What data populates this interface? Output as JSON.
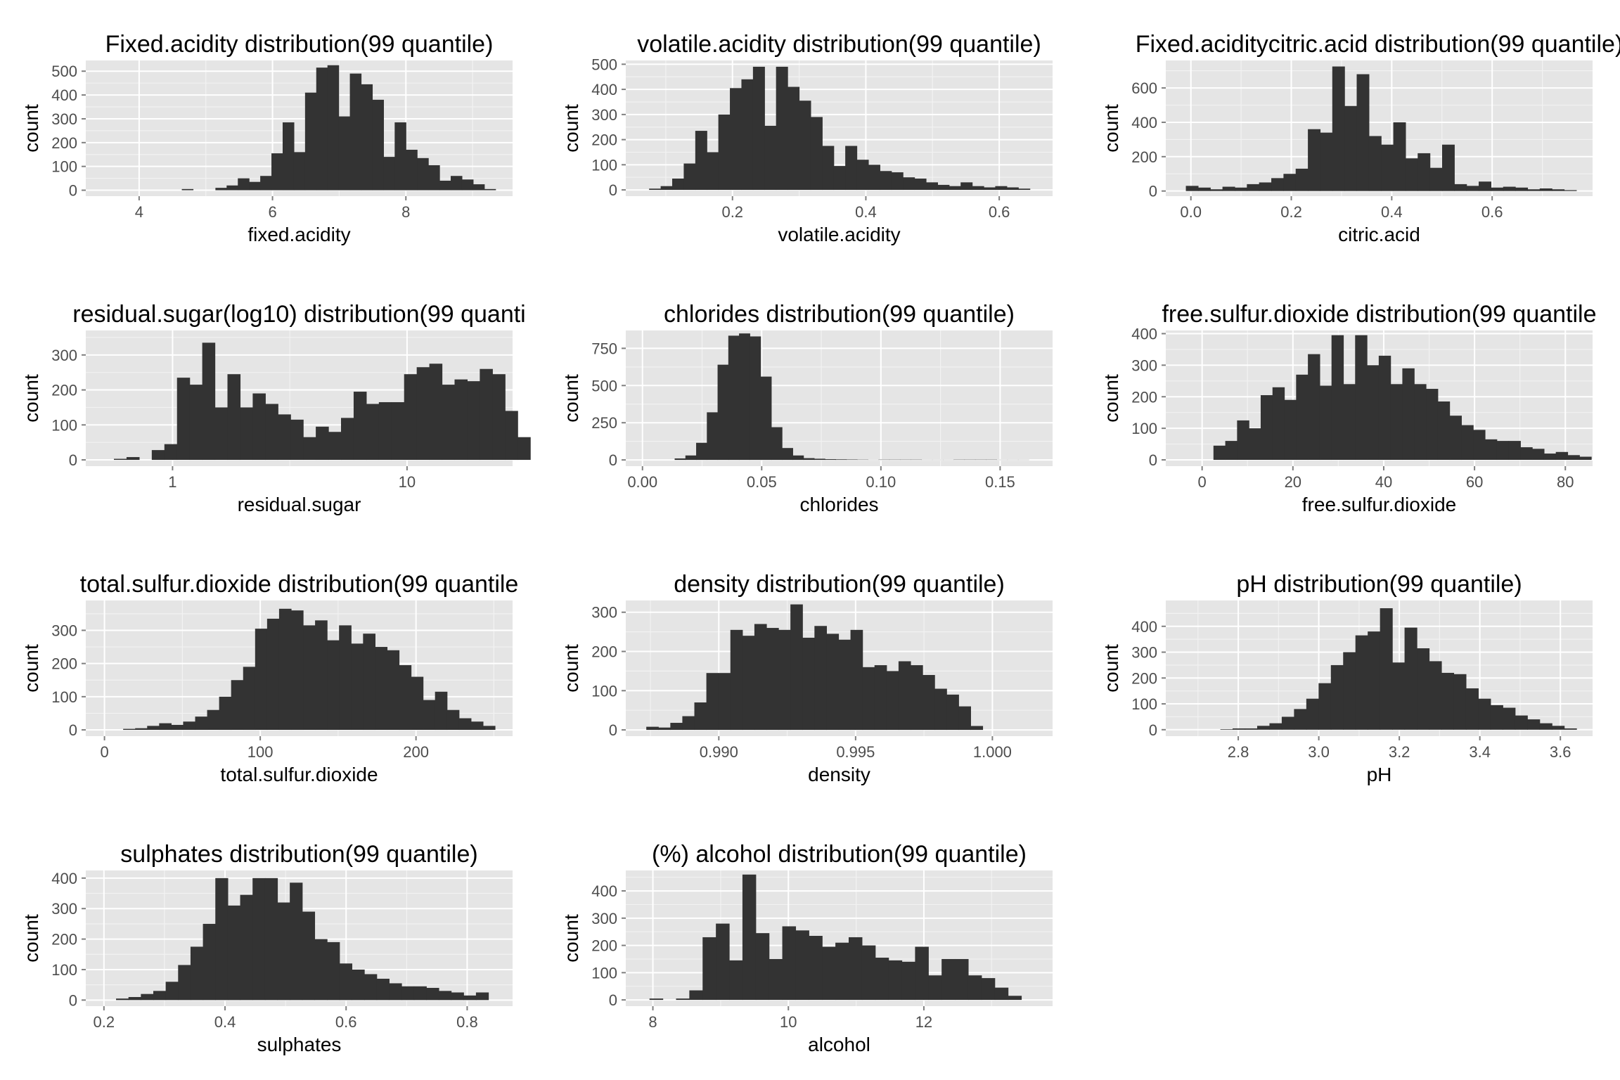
{
  "colors": {
    "panel_bg": "#e5e5e5",
    "grid_major": "#ffffff",
    "grid_minor": "#f2f2f2",
    "bar": "#333333",
    "tick_text": "#4d4d4d",
    "tick_mark": "#7f7f7f"
  },
  "chart_data": [
    {
      "type": "bar",
      "title": "Fixed.acidity distribution(99 quantile)",
      "xlabel": "fixed.acidity",
      "ylabel": "count",
      "xlim": [
        3.2,
        9.6
      ],
      "ylim": [
        -25,
        545
      ],
      "x_breaks": [
        4,
        6,
        8
      ],
      "x_tick_labels": [
        "4",
        "6",
        "8"
      ],
      "y_breaks": [
        0,
        100,
        200,
        300,
        400,
        500
      ],
      "y_tick_labels": [
        "0",
        "100",
        "200",
        "300",
        "400",
        "500"
      ],
      "bin_start": 3.8,
      "bin_width": 0.168,
      "values": [
        0,
        0,
        0,
        0,
        0,
        5,
        0,
        0,
        10,
        20,
        50,
        35,
        60,
        155,
        285,
        160,
        410,
        515,
        525,
        310,
        490,
        445,
        380,
        140,
        285,
        170,
        135,
        105,
        40,
        60,
        45,
        25,
        5,
        0,
        0
      ]
    },
    {
      "type": "bar",
      "title": "volatile.acidity distribution(99 quantile)",
      "xlabel": "volatile.acidity",
      "ylabel": "count",
      "xlim": [
        0.04,
        0.68
      ],
      "ylim": [
        -25,
        515
      ],
      "x_breaks": [
        0.2,
        0.4,
        0.6
      ],
      "x_tick_labels": [
        "0.2",
        "0.4",
        "0.6"
      ],
      "y_breaks": [
        0,
        100,
        200,
        300,
        400,
        500
      ],
      "y_tick_labels": [
        "0",
        "100",
        "200",
        "300",
        "400",
        "500"
      ],
      "bin_start": 0.075,
      "bin_width": 0.0173,
      "values": [
        5,
        15,
        45,
        105,
        235,
        150,
        300,
        405,
        440,
        490,
        255,
        490,
        410,
        355,
        290,
        175,
        95,
        175,
        120,
        100,
        75,
        70,
        50,
        45,
        30,
        20,
        15,
        30,
        15,
        10,
        15,
        10,
        5
      ]
    },
    {
      "type": "bar",
      "title": "Fixed.aciditycitric.acid distribution(99 quantile)",
      "xlabel": "citric.acid",
      "ylabel": "count",
      "xlim": [
        -0.05,
        0.8
      ],
      "ylim": [
        -30,
        760
      ],
      "x_breaks": [
        0,
        0.2,
        0.4,
        0.6
      ],
      "x_tick_labels": [
        "0.0",
        "0.2",
        "0.4",
        "0.6"
      ],
      "y_breaks": [
        0,
        200,
        400,
        600
      ],
      "y_tick_labels": [
        "0",
        "200",
        "400",
        "600"
      ],
      "bin_start": -0.01,
      "bin_width": 0.0243,
      "values": [
        30,
        20,
        10,
        25,
        20,
        40,
        50,
        75,
        100,
        130,
        360,
        340,
        725,
        495,
        680,
        320,
        270,
        400,
        190,
        220,
        135,
        270,
        40,
        30,
        55,
        20,
        25,
        20,
        10,
        15,
        10,
        5
      ]
    },
    {
      "type": "bar",
      "title": "residual.sugar(log10) distribution(99 quanti",
      "xlabel": "residual.sugar",
      "ylabel": "count",
      "x_scale": "log10",
      "xlim": [
        -0.37,
        1.45
      ],
      "ylim": [
        -18,
        370
      ],
      "x_breaks": [
        0,
        1
      ],
      "x_tick_labels": [
        "1",
        "10"
      ],
      "y_breaks": [
        0,
        100,
        200,
        300
      ],
      "y_tick_labels": [
        "0",
        "100",
        "200",
        "300"
      ],
      "bin_start": -0.25,
      "bin_width": 0.0538,
      "values": [
        3,
        8,
        0,
        28,
        45,
        235,
        215,
        335,
        150,
        245,
        150,
        190,
        160,
        130,
        115,
        65,
        95,
        80,
        120,
        195,
        160,
        165,
        165,
        245,
        265,
        275,
        215,
        230,
        225,
        260,
        245,
        140,
        65
      ]
    },
    {
      "type": "bar",
      "title": "chlorides distribution(99 quantile)",
      "xlabel": "chlorides",
      "ylabel": "count",
      "xlim": [
        -0.007,
        0.172
      ],
      "ylim": [
        -42,
        870
      ],
      "x_breaks": [
        0,
        0.05,
        0.1,
        0.15
      ],
      "x_tick_labels": [
        "0.00",
        "0.05",
        "0.10",
        "0.15"
      ],
      "y_breaks": [
        0,
        250,
        500,
        750
      ],
      "y_tick_labels": [
        "0",
        "250",
        "500",
        "750"
      ],
      "bin_start": 0.009,
      "bin_width": 0.0045,
      "values": [
        0,
        10,
        30,
        115,
        320,
        640,
        835,
        850,
        830,
        560,
        220,
        80,
        30,
        12,
        8,
        5,
        4,
        3,
        2,
        1,
        2,
        2,
        2,
        2,
        1,
        1,
        1,
        2,
        2,
        2,
        2,
        1,
        1,
        1
      ]
    },
    {
      "type": "bar",
      "title": "free.sulfur.dioxide distribution(99 quantile",
      "xlabel": "free.sulfur.dioxide",
      "ylabel": "count",
      "xlim": [
        -8,
        86
      ],
      "ylim": [
        -20,
        410
      ],
      "x_breaks": [
        0,
        20,
        40,
        60,
        80
      ],
      "x_tick_labels": [
        "0",
        "20",
        "40",
        "60",
        "80"
      ],
      "y_breaks": [
        0,
        100,
        200,
        300,
        400
      ],
      "y_tick_labels": [
        "0",
        "100",
        "200",
        "300",
        "400"
      ],
      "bin_start": 2.5,
      "bin_width": 2.6,
      "values": [
        45,
        60,
        125,
        100,
        205,
        230,
        190,
        270,
        335,
        235,
        395,
        240,
        395,
        300,
        330,
        240,
        290,
        240,
        225,
        185,
        140,
        110,
        95,
        65,
        60,
        60,
        40,
        35,
        20,
        25,
        15,
        10
      ]
    },
    {
      "type": "bar",
      "title": "total.sulfur.dioxide distribution(99 quantile",
      "xlabel": "total.sulfur.dioxide",
      "ylabel": "count",
      "xlim": [
        -12,
        262
      ],
      "ylim": [
        -19,
        390
      ],
      "x_breaks": [
        0,
        100,
        200
      ],
      "x_tick_labels": [
        "0",
        "100",
        "200"
      ],
      "y_breaks": [
        0,
        100,
        200,
        300
      ],
      "y_tick_labels": [
        "0",
        "100",
        "200",
        "300"
      ],
      "bin_start": 12,
      "bin_width": 7.7,
      "values": [
        3,
        5,
        12,
        20,
        15,
        25,
        40,
        60,
        100,
        150,
        190,
        305,
        335,
        365,
        360,
        315,
        330,
        270,
        315,
        260,
        290,
        250,
        240,
        195,
        160,
        90,
        115,
        60,
        35,
        25,
        12
      ]
    },
    {
      "type": "bar",
      "title": "density distribution(99 quantile)",
      "xlabel": "density",
      "ylabel": "count",
      "xlim": [
        0.9866,
        1.0022
      ],
      "ylim": [
        -16,
        330
      ],
      "x_breaks": [
        0.99,
        0.995,
        1.0
      ],
      "x_tick_labels": [
        "0.990",
        "0.995",
        "1.000"
      ],
      "y_breaks": [
        0,
        100,
        200,
        300
      ],
      "y_tick_labels": [
        "0",
        "100",
        "200",
        "300"
      ],
      "bin_start": 0.98735,
      "bin_width": 0.000439,
      "values": [
        8,
        6,
        18,
        35,
        70,
        145,
        145,
        255,
        240,
        270,
        260,
        255,
        320,
        235,
        265,
        245,
        230,
        255,
        160,
        165,
        150,
        175,
        165,
        140,
        105,
        90,
        60,
        10
      ]
    },
    {
      "type": "bar",
      "title": "pH distribution(99 quantile)",
      "xlabel": "pH",
      "ylabel": "count",
      "xlim": [
        2.62,
        3.68
      ],
      "ylim": [
        -25,
        500
      ],
      "x_breaks": [
        2.8,
        3.0,
        3.2,
        3.4,
        3.6
      ],
      "x_tick_labels": [
        "2.8",
        "3.0",
        "3.2",
        "3.4",
        "3.6"
      ],
      "y_breaks": [
        0,
        100,
        200,
        300,
        400
      ],
      "y_tick_labels": [
        "0",
        "100",
        "200",
        "300",
        "400"
      ],
      "bin_start": 2.725,
      "bin_width": 0.0305,
      "values": [
        0,
        2,
        5,
        5,
        15,
        25,
        50,
        80,
        120,
        180,
        250,
        300,
        365,
        380,
        470,
        260,
        395,
        315,
        265,
        220,
        215,
        160,
        120,
        95,
        85,
        55,
        40,
        25,
        15,
        5
      ]
    },
    {
      "type": "bar",
      "title": "sulphates distribution(99 quantile)",
      "xlabel": "sulphates",
      "ylabel": "count",
      "xlim": [
        0.17,
        0.875
      ],
      "ylim": [
        -20,
        425
      ],
      "x_breaks": [
        0.2,
        0.4,
        0.6,
        0.8
      ],
      "x_tick_labels": [
        "0.2",
        "0.4",
        "0.6",
        "0.8"
      ],
      "y_breaks": [
        0,
        100,
        200,
        300,
        400
      ],
      "y_tick_labels": [
        "0",
        "100",
        "200",
        "300",
        "400"
      ],
      "bin_start": 0.22,
      "bin_width": 0.0205,
      "values": [
        5,
        10,
        20,
        30,
        60,
        115,
        175,
        250,
        400,
        310,
        345,
        400,
        400,
        320,
        385,
        290,
        200,
        190,
        120,
        100,
        85,
        70,
        55,
        45,
        45,
        40,
        30,
        25,
        15,
        25
      ]
    },
    {
      "type": "bar",
      "title": "(%) alcohol distribution(99 quantile)",
      "xlabel": "alcohol",
      "ylabel": "count",
      "xlim": [
        7.6,
        13.9
      ],
      "ylim": [
        -23,
        475
      ],
      "x_breaks": [
        8,
        10,
        12
      ],
      "x_tick_labels": [
        "8",
        "10",
        "12"
      ],
      "y_breaks": [
        0,
        100,
        200,
        300,
        400
      ],
      "y_tick_labels": [
        "0",
        "100",
        "200",
        "300",
        "400"
      ],
      "bin_start": 7.95,
      "bin_width": 0.196,
      "values": [
        5,
        0,
        5,
        35,
        230,
        280,
        145,
        460,
        245,
        150,
        270,
        255,
        235,
        195,
        210,
        230,
        200,
        155,
        145,
        140,
        195,
        90,
        150,
        150,
        90,
        80,
        45,
        15
      ]
    }
  ]
}
